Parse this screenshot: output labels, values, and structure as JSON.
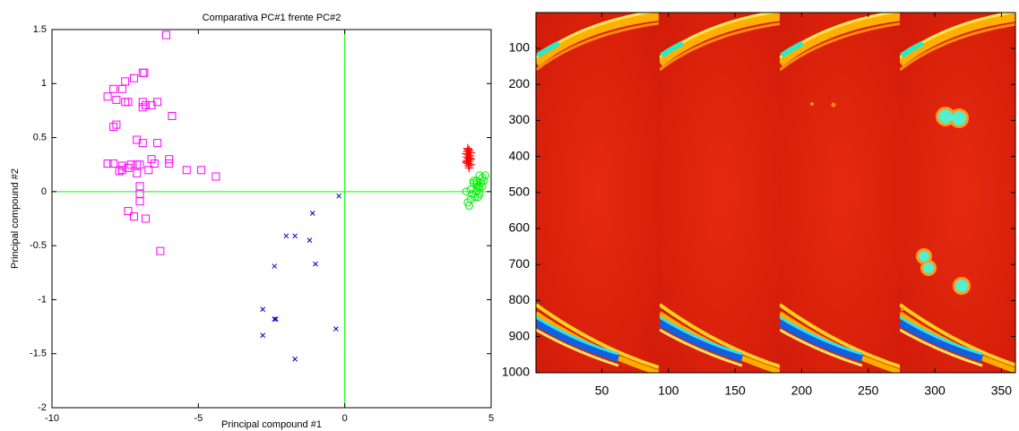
{
  "chart_data": [
    {
      "type": "scatter",
      "title": "Comparativa PC#1 frente PC#2",
      "x_label": "Principal compound #1",
      "y_label": "Principal compound #2",
      "xlim": [
        -10,
        5
      ],
      "ylim": [
        -2,
        1.5
      ],
      "xticks": [
        -10,
        -5,
        0,
        5
      ],
      "yticks": [
        -2,
        -1.5,
        -1,
        -0.5,
        0,
        0.5,
        1,
        1.5
      ],
      "zero_lines": true,
      "zero_line_color": "#00ff00",
      "series": [
        {
          "color": "#ff00ff",
          "marker": "square",
          "x": [
            -6.1,
            -6.9,
            -6.85,
            -7.2,
            -7.5,
            -7.6,
            -7.9,
            -8.1,
            -7.8,
            -7.5,
            -7.4,
            -6.9,
            -6.8,
            -6.6,
            -6.9,
            -6.4,
            -5.9,
            -7.8,
            -7.9,
            -7.1,
            -6.9,
            -6.4,
            -6.6,
            -8.1,
            -7.9,
            -7.6,
            -7.3,
            -7.1,
            -7.0,
            -6.5,
            -6.0,
            -6.0,
            -5.4,
            -4.9,
            -4.4,
            -6.7,
            -7.4,
            -7.7,
            -7.6,
            -7.1,
            -7.0,
            -7.0,
            -7.0,
            -7.4,
            -7.2,
            -6.8,
            -6.3
          ],
          "values": [
            1.45,
            1.1,
            1.1,
            1.05,
            1.02,
            0.95,
            0.95,
            0.88,
            0.85,
            0.83,
            0.83,
            0.83,
            0.8,
            0.8,
            0.78,
            0.83,
            0.7,
            0.62,
            0.6,
            0.48,
            0.45,
            0.45,
            0.3,
            0.26,
            0.26,
            0.24,
            0.25,
            0.25,
            0.25,
            0.26,
            0.3,
            0.26,
            0.2,
            0.2,
            0.14,
            0.2,
            0.22,
            0.19,
            0.2,
            0.17,
            0.05,
            -0.02,
            -0.09,
            -0.18,
            -0.23,
            -0.25,
            -0.55
          ]
        },
        {
          "color": "#0000cc",
          "marker": "x",
          "x": [
            -0.2,
            -1.1,
            -1.2,
            -2.0,
            -1.7,
            -2.4,
            -1.0,
            -2.8,
            -2.4,
            -2.35,
            -2.8,
            -0.3,
            -1.7
          ],
          "values": [
            -0.04,
            -0.2,
            -0.45,
            -0.41,
            -0.41,
            -0.69,
            -0.67,
            -1.09,
            -1.18,
            -1.18,
            -1.33,
            -1.27,
            -1.55
          ]
        },
        {
          "color": "#ff0000",
          "marker": "plus",
          "x": [
            4.2,
            4.25,
            4.3,
            4.15,
            4.22,
            4.28,
            4.18,
            4.24,
            4.3,
            4.2,
            4.26,
            4.16,
            4.22,
            4.3,
            4.19,
            4.25,
            4.21,
            4.27,
            4.23,
            4.18
          ],
          "values": [
            0.4,
            0.38,
            0.36,
            0.35,
            0.34,
            0.33,
            0.32,
            0.31,
            0.3,
            0.29,
            0.28,
            0.27,
            0.26,
            0.25,
            0.37,
            0.22,
            0.39,
            0.3,
            0.24,
            0.28
          ]
        },
        {
          "color": "#00ee00",
          "marker": "circle",
          "x": [
            4.6,
            4.7,
            4.8,
            4.5,
            4.65,
            4.55,
            4.4,
            4.3,
            4.5,
            4.6,
            4.35,
            4.45,
            4.7,
            4.2,
            4.25,
            4.55,
            4.4,
            4.6,
            4.75,
            4.5,
            4.3,
            4.15
          ],
          "values": [
            0.15,
            0.13,
            0.15,
            0.1,
            0.08,
            0.05,
            0.08,
            0.02,
            0.0,
            0.03,
            -0.02,
            -0.05,
            0.05,
            -0.1,
            -0.13,
            -0.05,
            0.1,
            -0.02,
            0.1,
            0.07,
            -0.07,
            0.0
          ]
        }
      ]
    },
    {
      "type": "image",
      "xlim": [
        0.5,
        360.5
      ],
      "ylim": [
        0.5,
        1000.5
      ],
      "y_reversed": true,
      "xticks": [
        50,
        100,
        150,
        200,
        250,
        300,
        350
      ],
      "yticks": [
        100,
        200,
        300,
        400,
        500,
        600,
        700,
        800,
        900,
        1000
      ]
    }
  ]
}
